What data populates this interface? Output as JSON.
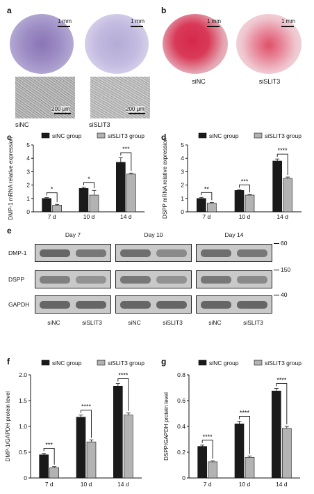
{
  "panels": {
    "a": {
      "letter": "a",
      "labels": [
        "siNC",
        "siSLIT3"
      ],
      "scale_top": "1 mm",
      "scale_bottom": "200 μm"
    },
    "b": {
      "letter": "b",
      "labels": [
        "siNC",
        "siSLIT3"
      ],
      "scale_top": "1 mm"
    },
    "e": {
      "letter": "e",
      "days": [
        "Day 7",
        "Day 10",
        "Day 14"
      ],
      "rows": [
        "DMP-1",
        "DSPP",
        "GAPDH"
      ],
      "mw": [
        "60",
        "150",
        "40"
      ],
      "lanes": [
        "siNC",
        "siSLIT3",
        "siNC",
        "siSLIT3",
        "siNC",
        "siSLIT3"
      ]
    }
  },
  "colors": {
    "siNC": "#1a1a1a",
    "siSLIT3": "#b3b3b3",
    "purple_stain": "#7a5fa8",
    "red_stain": "#d2304c"
  },
  "chart_data": [
    {
      "panel": "c",
      "type": "bar",
      "categories": [
        "7 d",
        "10 d",
        "14 d"
      ],
      "ylabel": "DMP-1 mRNA relative expression",
      "yticks": [
        "0",
        "1",
        "2",
        "3",
        "4",
        "5"
      ],
      "ylim": [
        0,
        5
      ],
      "series": [
        {
          "name": "siNC group",
          "values": [
            1.0,
            1.75,
            3.7
          ],
          "err": [
            0.06,
            0.08,
            0.35
          ]
        },
        {
          "name": "siSLIT3 group",
          "values": [
            0.5,
            1.25,
            2.82
          ],
          "err": [
            0.06,
            0.35,
            0.08
          ]
        }
      ],
      "significance": [
        "*",
        "*",
        "***"
      ]
    },
    {
      "panel": "d",
      "type": "bar",
      "categories": [
        "7 d",
        "10 d",
        "14 d"
      ],
      "ylabel": "DSPP mRNA relative expression",
      "yticks": [
        "0",
        "1",
        "2",
        "3",
        "4",
        "5"
      ],
      "ylim": [
        0,
        5
      ],
      "series": [
        {
          "name": "siNC group",
          "values": [
            1.0,
            1.6,
            3.8
          ],
          "err": [
            0.08,
            0.05,
            0.15
          ]
        },
        {
          "name": "siSLIT3 group",
          "values": [
            0.65,
            1.25,
            2.5
          ],
          "err": [
            0.06,
            0.04,
            0.1
          ]
        }
      ],
      "significance": [
        "**",
        "***",
        "****"
      ]
    },
    {
      "panel": "f",
      "type": "bar",
      "categories": [
        "7 d",
        "10 d",
        "14 d"
      ],
      "ylabel": "DMP-1/GAPDH protein level",
      "yticks": [
        "0",
        "0.5",
        "1.0",
        "1.5",
        "2.0"
      ],
      "ylim": [
        0,
        2.0
      ],
      "series": [
        {
          "name": "siNC group",
          "values": [
            0.45,
            1.18,
            1.78
          ],
          "err": [
            0.03,
            0.04,
            0.05
          ]
        },
        {
          "name": "siSLIT3 group",
          "values": [
            0.2,
            0.7,
            1.22
          ],
          "err": [
            0.02,
            0.04,
            0.04
          ]
        }
      ],
      "significance": [
        "***",
        "****",
        "****"
      ]
    },
    {
      "panel": "g",
      "type": "bar",
      "categories": [
        "7 d",
        "10 d",
        "14 d"
      ],
      "ylabel": "DSPP/GAPDH protein level",
      "yticks": [
        "0",
        "0.2",
        "0.4",
        "0.6",
        "0.8"
      ],
      "ylim": [
        0,
        0.8
      ],
      "series": [
        {
          "name": "siNC group",
          "values": [
            0.245,
            0.42,
            0.675
          ],
          "err": [
            0.01,
            0.02,
            0.02
          ]
        },
        {
          "name": "siSLIT3 group",
          "values": [
            0.125,
            0.16,
            0.385
          ],
          "err": [
            0.008,
            0.01,
            0.015
          ]
        }
      ],
      "significance": [
        "****",
        "****",
        "****"
      ]
    }
  ]
}
